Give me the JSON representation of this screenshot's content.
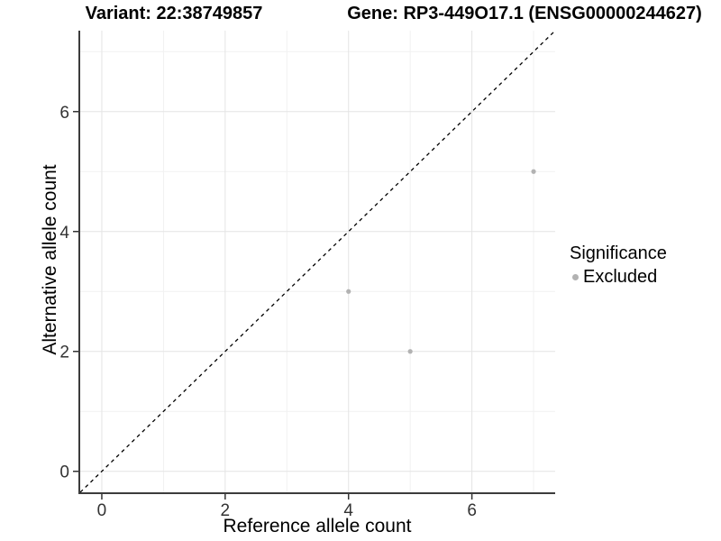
{
  "titles": {
    "variant": "Variant: 22:38749857",
    "gene": "Gene: RP3-449O17.1 (ENSG00000244627)"
  },
  "axes": {
    "x_label": "Reference allele count",
    "y_label": "Alternative allele count"
  },
  "legend": {
    "title": "Significance",
    "items": [
      {
        "label": "Excluded",
        "marker": "circle-icon",
        "color": "#b2b2b2"
      }
    ]
  },
  "colors": {
    "point": "#b2b2b2",
    "grid_major": "#e4e4e4",
    "grid_minor": "#f1f1f1",
    "axis_line": "#3c3c3c",
    "tick_mark": "#333333",
    "tick_text": "#333333",
    "reference_line": "#000000",
    "background": "#ffffff"
  },
  "chart_data": {
    "type": "scatter",
    "title": "Variant: 22:38749857 | Gene: RP3-449O17.1 (ENSG00000244627)",
    "xlabel": "Reference allele count",
    "ylabel": "Alternative allele count",
    "xlim": [
      -0.35,
      7.35
    ],
    "ylim": [
      -0.35,
      7.35
    ],
    "x_ticks": [
      0,
      2,
      4,
      6
    ],
    "y_ticks": [
      0,
      2,
      4,
      6
    ],
    "x_minor_ticks": [
      1,
      3,
      5,
      7
    ],
    "y_minor_ticks": [
      1,
      3,
      5,
      7
    ],
    "grid": true,
    "legend_position": "right",
    "series": [
      {
        "name": "Excluded",
        "color": "#b2b2b2",
        "points": [
          {
            "x": 4,
            "y": 3
          },
          {
            "x": 5,
            "y": 2
          },
          {
            "x": 7,
            "y": 5
          }
        ]
      }
    ],
    "reference_line": {
      "type": "identity y=x",
      "style": "dashed",
      "color": "#000000"
    }
  }
}
